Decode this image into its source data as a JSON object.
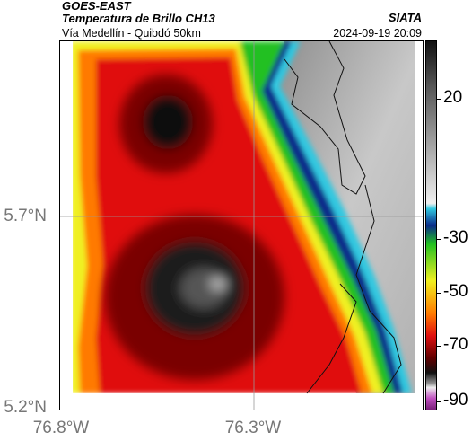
{
  "header": {
    "satellite": "GOES-EAST",
    "product": "Temperatura de Brillo CH13",
    "route": "Vía Medellín - Quibdó 50km",
    "org": "SIATA",
    "datetime": "2024-09-19 20:09"
  },
  "map": {
    "lat_labels": [
      "5.7°N",
      "5.2°N"
    ],
    "lon_labels": [
      "76.8°W",
      "76.3°W"
    ],
    "gridlines": true
  },
  "colorbar": {
    "tick_labels": [
      "20",
      "-30",
      "-50",
      "-70",
      "-90"
    ],
    "tick_values": [
      20,
      -30,
      -50,
      -70,
      -90
    ],
    "colors": {
      "warm_gray": "#bdbdbd",
      "cyan": "#30c8e0",
      "blue": "#0a2a8a",
      "green": "#20c020",
      "yellow": "#f0f020",
      "orange": "#ff7a00",
      "red": "#e01010",
      "dark_red": "#600000",
      "black": "#111111",
      "magenta": "#c050c0"
    }
  }
}
